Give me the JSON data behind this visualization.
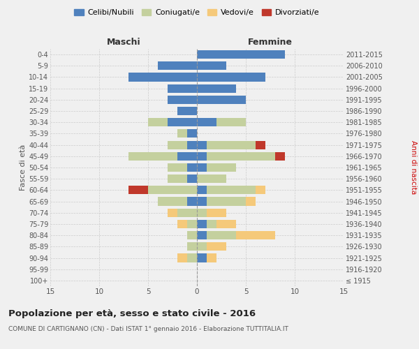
{
  "age_groups": [
    "100+",
    "95-99",
    "90-94",
    "85-89",
    "80-84",
    "75-79",
    "70-74",
    "65-69",
    "60-64",
    "55-59",
    "50-54",
    "45-49",
    "40-44",
    "35-39",
    "30-34",
    "25-29",
    "20-24",
    "15-19",
    "10-14",
    "5-9",
    "0-4"
  ],
  "birth_years": [
    "≤ 1915",
    "1916-1920",
    "1921-1925",
    "1926-1930",
    "1931-1935",
    "1936-1940",
    "1941-1945",
    "1946-1950",
    "1951-1955",
    "1956-1960",
    "1961-1965",
    "1966-1970",
    "1971-1975",
    "1976-1980",
    "1981-1985",
    "1986-1990",
    "1991-1995",
    "1996-2000",
    "2001-2005",
    "2006-2010",
    "2011-2015"
  ],
  "male": {
    "celibi": [
      0,
      0,
      0,
      0,
      0,
      0,
      0,
      1,
      0,
      1,
      1,
      2,
      1,
      1,
      3,
      2,
      3,
      3,
      7,
      4,
      0
    ],
    "coniugati": [
      0,
      0,
      1,
      1,
      1,
      1,
      2,
      3,
      5,
      2,
      2,
      5,
      2,
      1,
      2,
      0,
      0,
      0,
      0,
      0,
      0
    ],
    "vedovi": [
      0,
      0,
      1,
      0,
      0,
      1,
      1,
      0,
      0,
      0,
      0,
      0,
      0,
      0,
      0,
      0,
      0,
      0,
      0,
      0,
      0
    ],
    "divorziati": [
      0,
      0,
      0,
      0,
      0,
      0,
      0,
      0,
      2,
      0,
      0,
      0,
      0,
      0,
      0,
      0,
      0,
      0,
      0,
      0,
      0
    ]
  },
  "female": {
    "nubili": [
      0,
      0,
      1,
      0,
      1,
      1,
      0,
      1,
      1,
      0,
      1,
      1,
      1,
      0,
      2,
      0,
      5,
      4,
      7,
      3,
      9
    ],
    "coniugate": [
      0,
      0,
      0,
      1,
      3,
      1,
      1,
      4,
      5,
      3,
      3,
      7,
      5,
      0,
      3,
      0,
      0,
      0,
      0,
      0,
      0
    ],
    "vedove": [
      0,
      0,
      1,
      2,
      4,
      2,
      2,
      1,
      1,
      0,
      0,
      0,
      0,
      0,
      0,
      0,
      0,
      0,
      0,
      0,
      0
    ],
    "divorziate": [
      0,
      0,
      0,
      0,
      0,
      0,
      0,
      0,
      0,
      0,
      0,
      1,
      1,
      0,
      0,
      0,
      0,
      0,
      0,
      0,
      0
    ]
  },
  "colors": {
    "celibi_nubili": "#4f81bd",
    "coniugati": "#c4d09e",
    "vedovi": "#f5c97a",
    "divorziati": "#c0382b"
  },
  "title": "Popolazione per età, sesso e stato civile - 2016",
  "subtitle": "COMUNE DI CARTIGNANO (CN) - Dati ISTAT 1° gennaio 2016 - Elaborazione TUTTITALIA.IT",
  "xlabel_left": "Maschi",
  "xlabel_right": "Femmine",
  "ylabel_left": "Fasce di età",
  "ylabel_right": "Anni di nascita",
  "xlim": 15,
  "legend_labels": [
    "Celibi/Nubili",
    "Coniugati/e",
    "Vedovi/e",
    "Divorziati/e"
  ],
  "background_color": "#f0f0f0"
}
